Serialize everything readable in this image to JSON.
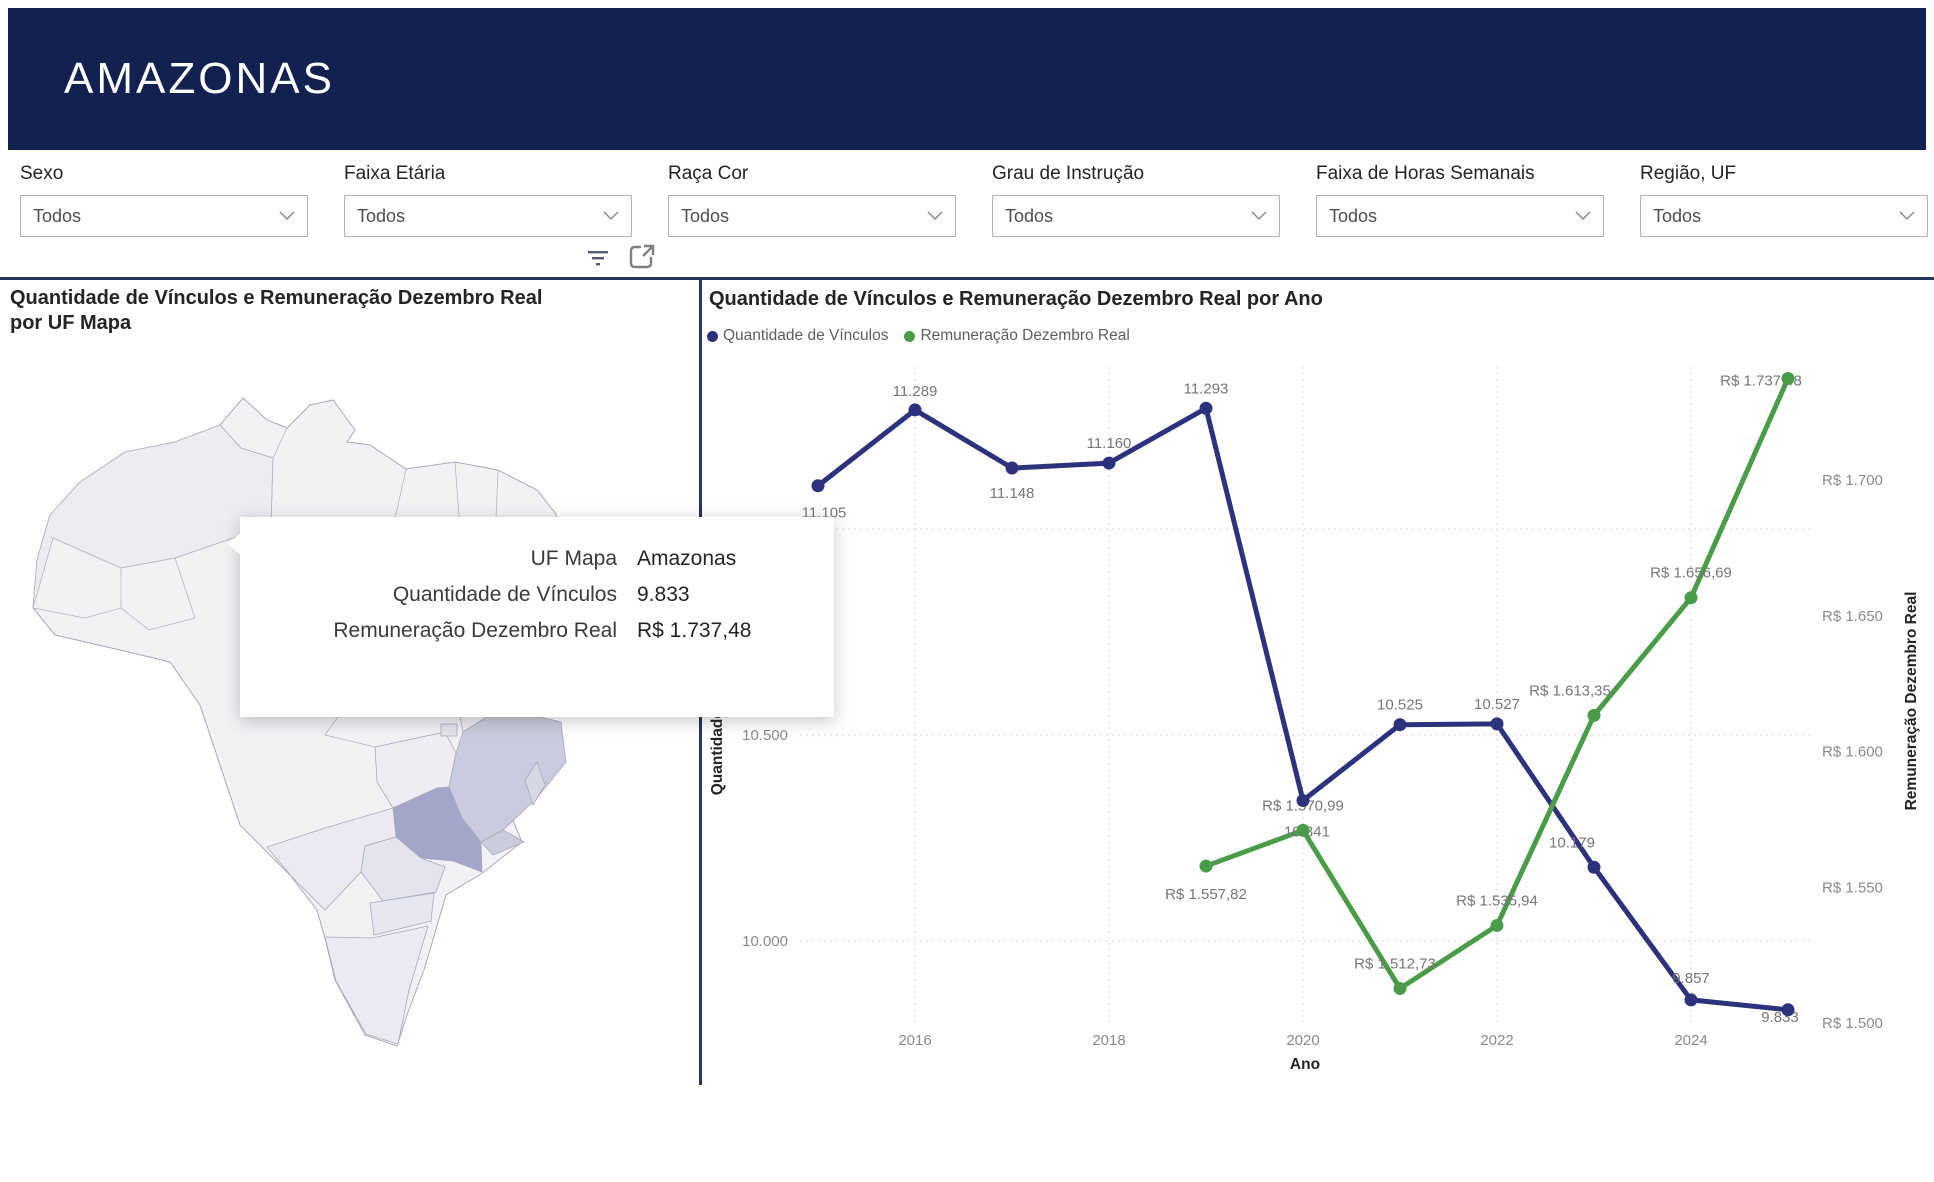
{
  "header": {
    "title": "AMAZONAS"
  },
  "filters": [
    {
      "label": "Sexo",
      "value": "Todos"
    },
    {
      "label": "Faixa Etária",
      "value": "Todos"
    },
    {
      "label": "Raça Cor",
      "value": "Todos"
    },
    {
      "label": "Grau de Instrução",
      "value": "Todos"
    },
    {
      "label": "Faixa de Horas Semanais",
      "value": "Todos"
    },
    {
      "label": "Região, UF",
      "value": "Todos"
    }
  ],
  "toolbar": {
    "filter_icon": "filter",
    "popout_icon": "pop-out"
  },
  "map_panel": {
    "title": "Quantidade de Vínculos e Remuneração Dezembro Real por UF Mapa",
    "highlight_color": "#a3a6c9",
    "tooltip": {
      "rows": [
        {
          "label": "UF Mapa",
          "value": "Amazonas"
        },
        {
          "label": "Quantidade de Vínculos",
          "value": "9.833"
        },
        {
          "label": "Remuneração Dezembro Real",
          "value": "R$ 1.737,48"
        }
      ]
    }
  },
  "chart_panel": {
    "title": "Quantidade de Vínculos e Remuneração Dezembro Real por Ano"
  },
  "chart_data": {
    "type": "line",
    "title": "Quantidade de Vínculos e Remuneração Dezembro Real por Ano",
    "xlabel": "Ano",
    "x_ticks": [
      2016,
      2018,
      2020,
      2022,
      2024
    ],
    "grid": true,
    "legend_position": "top-left",
    "left_axis": {
      "title": "Quantidade de Vínculos",
      "ticks": [
        "10.000",
        "10.500",
        "11.000"
      ],
      "tick_values": [
        10000,
        10500,
        11000
      ]
    },
    "right_axis": {
      "title": "Remuneração Dezembro Real",
      "ticks": [
        "R$ 1.500",
        "R$ 1.550",
        "R$ 1.600",
        "R$ 1.650",
        "R$ 1.700"
      ],
      "tick_values": [
        1500,
        1550,
        1600,
        1650,
        1700
      ]
    },
    "series": [
      {
        "name": "Quantidade de Vínculos",
        "color": "#2d327d",
        "axis": "left",
        "x": [
          2015,
          2016,
          2017,
          2018,
          2019,
          2020,
          2021,
          2022,
          2023,
          2024,
          2025
        ],
        "values": [
          11105,
          11289,
          11148,
          11160,
          11293,
          10341,
          10525,
          10527,
          10179,
          9857,
          9833
        ],
        "labels": [
          "11.105",
          "11.289",
          "11.148",
          "11.160",
          "11.293",
          "10.341",
          "10.525",
          "10.527",
          "10.179",
          "9.857",
          "9.833"
        ]
      },
      {
        "name": "Remuneração Dezembro Real",
        "color": "#4a9c49",
        "axis": "right",
        "x": [
          2019,
          2020,
          2021,
          2022,
          2023,
          2024,
          2025
        ],
        "values": [
          1557.82,
          1570.99,
          1512.73,
          1535.94,
          1613.35,
          1656.69,
          1737.48
        ],
        "labels": [
          "R$ 1.557,82",
          "R$ 1.570,99",
          "R$ 1.512,73",
          "R$ 1.535,94",
          "R$ 1.613,35",
          "R$ 1.656,69",
          "R$ 1.737,48"
        ]
      }
    ]
  },
  "colors": {
    "header_bg": "#122150",
    "divider": "#283461",
    "accent_navy": "#2d327d",
    "accent_green": "#4a9c49"
  }
}
